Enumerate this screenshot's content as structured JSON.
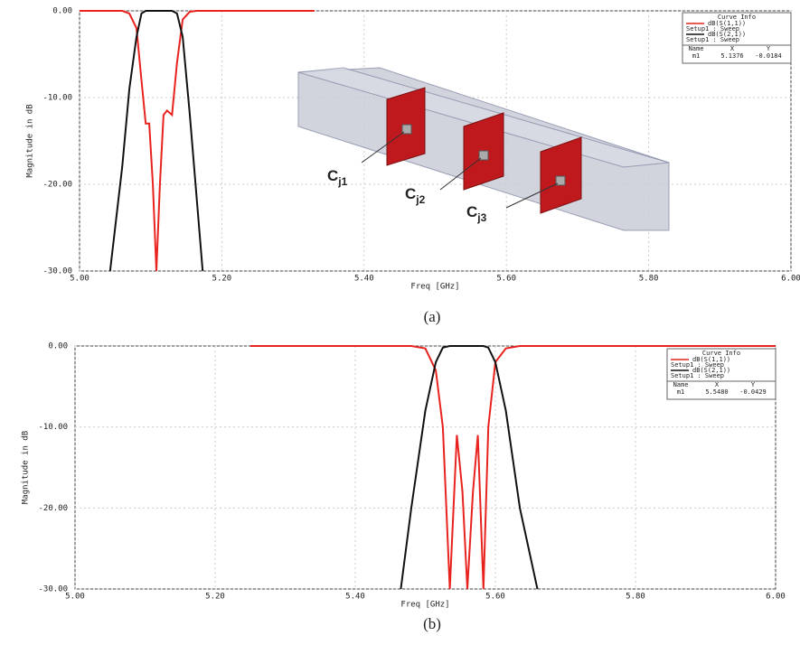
{
  "chart_data": [
    {
      "type": "line",
      "caption": "(a)",
      "x_label": "Freq [GHz]",
      "y_label": "Magnitude in dB",
      "xlim": [
        5.0,
        6.0
      ],
      "ylim": [
        -30,
        0
      ],
      "xticks": [
        {
          "value": 5.0,
          "label": "5.00"
        },
        {
          "value": 5.2,
          "label": "5.20"
        },
        {
          "value": 5.4,
          "label": "5.40"
        },
        {
          "value": 5.6,
          "label": "5.60"
        },
        {
          "value": 5.8,
          "label": "5.80"
        },
        {
          "value": 6.0,
          "label": "6.00"
        }
      ],
      "yticks": [
        {
          "value": 0,
          "label": "0.00"
        },
        {
          "value": -10,
          "label": "-10.00"
        },
        {
          "value": -20,
          "label": "-20.00"
        },
        {
          "value": -30,
          "label": "-30.00"
        }
      ],
      "grid": true,
      "legend_title": "Curve Info",
      "x": [
        5.0,
        5.043,
        5.06,
        5.07,
        5.08,
        5.087,
        5.093,
        5.098,
        5.103,
        5.108,
        5.113,
        5.118,
        5.123,
        5.13,
        5.137,
        5.145,
        5.155,
        5.165,
        5.173,
        5.2,
        5.33
      ],
      "series": [
        {
          "name": "dB(S(1,1))",
          "setup": "Setup1 : Sweep",
          "color": "#e8231e",
          "values": [
            0,
            0,
            0,
            -0.3,
            -2,
            -8,
            -13,
            -13,
            -20,
            -30,
            -20,
            -12,
            -11.5,
            -12,
            -6,
            -1,
            -0.1,
            0,
            0,
            0,
            0
          ]
        },
        {
          "name": "dB(S(2,1))",
          "setup": "Setup1 : Sweep",
          "color": "#111111",
          "values": [
            null,
            -30,
            -18,
            -9,
            -3,
            -0.3,
            0,
            0,
            0,
            0,
            0,
            0,
            0,
            0,
            -0.3,
            -3,
            -12,
            -22,
            -30,
            null,
            null
          ]
        }
      ],
      "marker_table": {
        "header": [
          "Name",
          "X",
          "Y"
        ],
        "row": [
          "m1",
          "5.1376",
          "-0.0184"
        ]
      },
      "annotations": [
        {
          "text": "C",
          "sub": "j1"
        },
        {
          "text": "C",
          "sub": "j2"
        },
        {
          "text": "C",
          "sub": "j3"
        }
      ]
    },
    {
      "type": "line",
      "caption": "(b)",
      "x_label": "Freq [GHz]",
      "y_label": "Magnitude in dB",
      "xlim": [
        5.0,
        6.0
      ],
      "ylim": [
        -30,
        0
      ],
      "xticks": [
        {
          "value": 5.0,
          "label": "5.00"
        },
        {
          "value": 5.2,
          "label": "5.20"
        },
        {
          "value": 5.4,
          "label": "5.40"
        },
        {
          "value": 5.6,
          "label": "5.60"
        },
        {
          "value": 5.8,
          "label": "5.80"
        },
        {
          "value": 6.0,
          "label": "6.00"
        }
      ],
      "yticks": [
        {
          "value": 0,
          "label": "0.00"
        },
        {
          "value": -10,
          "label": "-10.00"
        },
        {
          "value": -20,
          "label": "-20.00"
        },
        {
          "value": -30,
          "label": "-30.00"
        }
      ],
      "grid": true,
      "legend_title": "Curve Info",
      "x": [
        5.25,
        5.44,
        5.465,
        5.48,
        5.5,
        5.515,
        5.525,
        5.535,
        5.545,
        5.553,
        5.56,
        5.568,
        5.575,
        5.583,
        5.59,
        5.6,
        5.615,
        5.635,
        5.66,
        5.7,
        6.0
      ],
      "series": [
        {
          "name": "dB(S(1,1))",
          "setup": "Setup1 : Sweep",
          "color": "#e8231e",
          "values": [
            0,
            0,
            0,
            0,
            -0.3,
            -3,
            -10,
            -30,
            -11,
            -18,
            -30,
            -18,
            -11,
            -30,
            -10,
            -2,
            -0.3,
            0,
            0,
            0,
            0
          ]
        },
        {
          "name": "dB(S(2,1))",
          "setup": "Setup1 : Sweep",
          "color": "#111111",
          "values": [
            null,
            null,
            -30,
            -20,
            -8,
            -2,
            -0.2,
            0,
            0,
            0,
            0,
            0,
            0,
            0,
            -0.2,
            -2,
            -8,
            -20,
            -30,
            null,
            null
          ]
        }
      ],
      "marker_table": {
        "header": [
          "Name",
          "X",
          "Y"
        ],
        "row": [
          "m1",
          "5.5480",
          "-0.0429"
        ]
      }
    }
  ]
}
